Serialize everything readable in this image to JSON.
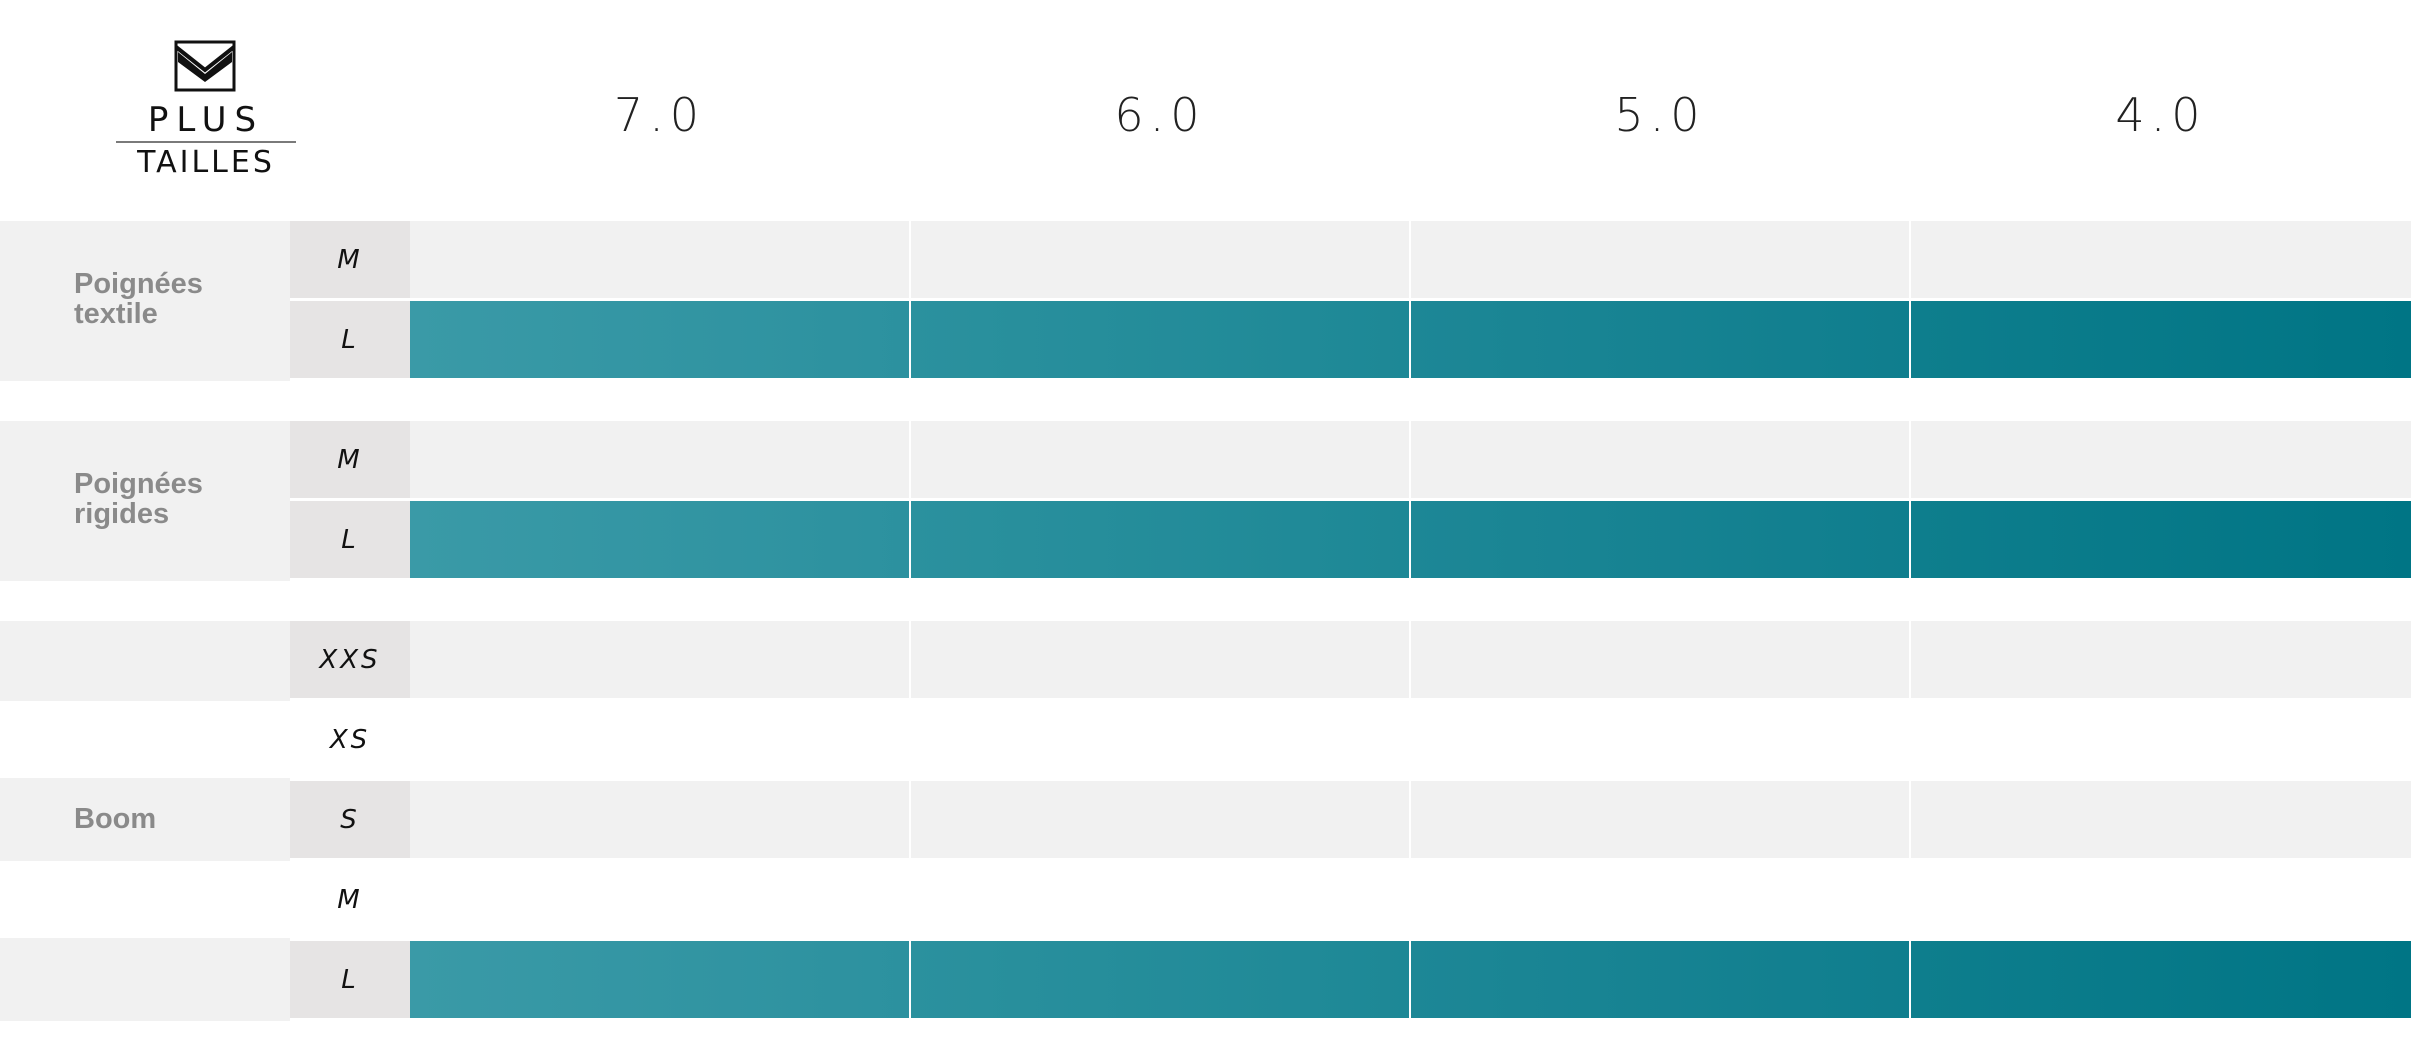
{
  "logo": {
    "top_text": "PLUS",
    "bottom_text": "TAILLES"
  },
  "columns": [
    "7.0",
    "6.0",
    "5.0",
    "4.0"
  ],
  "colors": {
    "filled_start": "#3a9aa7",
    "filled_end": "#007585",
    "empty_cell": "#f1f1f1",
    "size_cell": "#e6e4e4",
    "group_label": "#8a8a8a"
  },
  "groups": [
    {
      "label_lines": [
        "Poignées",
        "textile"
      ],
      "rows": [
        {
          "size": "M",
          "available": [
            false,
            false,
            false,
            false
          ]
        },
        {
          "size": "L",
          "available": [
            true,
            true,
            true,
            true
          ]
        }
      ]
    },
    {
      "label_lines": [
        "Poignées",
        "rigides"
      ],
      "rows": [
        {
          "size": "M",
          "available": [
            false,
            false,
            false,
            false
          ]
        },
        {
          "size": "L",
          "available": [
            true,
            true,
            true,
            true
          ]
        }
      ]
    },
    {
      "label_lines": [
        "Boom"
      ],
      "rows": [
        {
          "size": "XXS",
          "available": [
            false,
            false,
            false,
            false
          ]
        },
        {
          "size": "XS",
          "available": [
            false,
            false,
            false,
            false
          ]
        },
        {
          "size": "S",
          "available": [
            false,
            false,
            false,
            false
          ]
        },
        {
          "size": "M",
          "available": [
            false,
            false,
            false,
            false
          ]
        },
        {
          "size": "L",
          "available": [
            true,
            true,
            true,
            true
          ]
        }
      ]
    }
  ],
  "chart_data": {
    "type": "table",
    "columns": [
      "7.0",
      "6.0",
      "5.0",
      "4.0"
    ],
    "rows": [
      {
        "group": "Poignées textile",
        "size": "M",
        "values": [
          0,
          0,
          0,
          0
        ]
      },
      {
        "group": "Poignées textile",
        "size": "L",
        "values": [
          1,
          1,
          1,
          1
        ]
      },
      {
        "group": "Poignées rigides",
        "size": "M",
        "values": [
          0,
          0,
          0,
          0
        ]
      },
      {
        "group": "Poignées rigides",
        "size": "L",
        "values": [
          1,
          1,
          1,
          1
        ]
      },
      {
        "group": "Boom",
        "size": "XXS",
        "values": [
          0,
          0,
          0,
          0
        ]
      },
      {
        "group": "Boom",
        "size": "XS",
        "values": [
          0,
          0,
          0,
          0
        ]
      },
      {
        "group": "Boom",
        "size": "S",
        "values": [
          0,
          0,
          0,
          0
        ]
      },
      {
        "group": "Boom",
        "size": "M",
        "values": [
          0,
          0,
          0,
          0
        ]
      },
      {
        "group": "Boom",
        "size": "L",
        "values": [
          1,
          1,
          1,
          1
        ]
      }
    ]
  }
}
